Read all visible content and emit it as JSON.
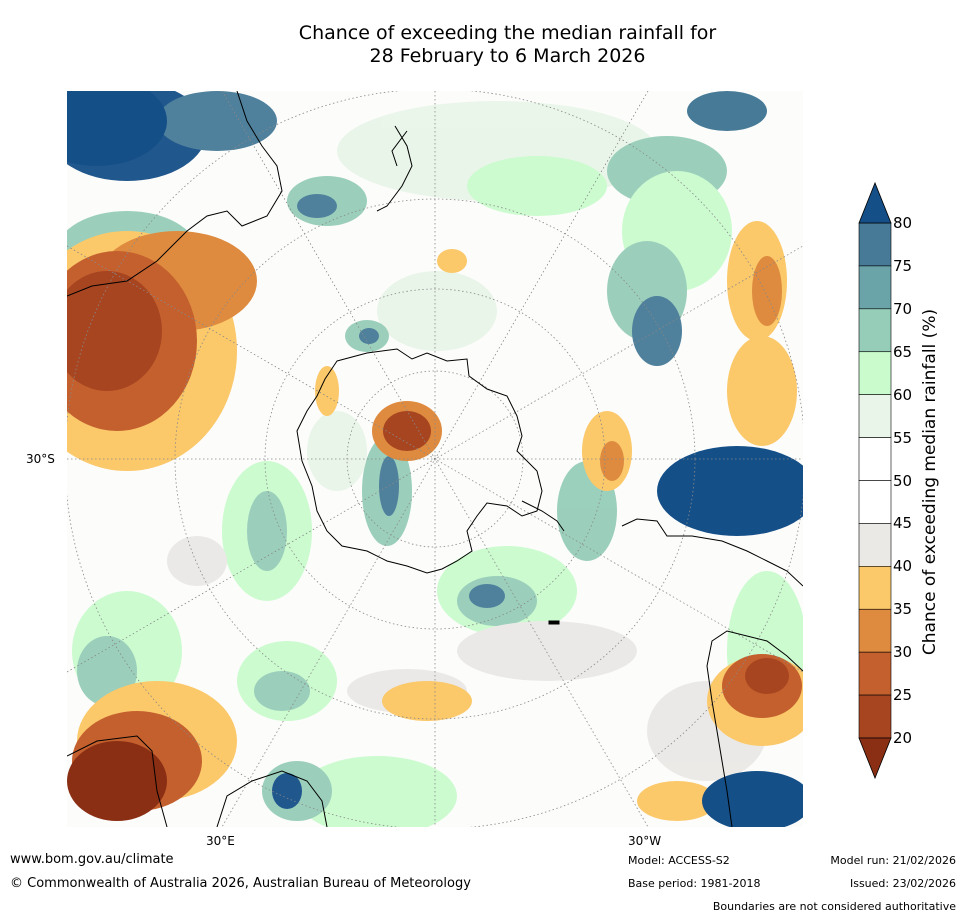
{
  "title": {
    "line1": "Chance of exceeding the median rainfall for",
    "line2": "28 February to 6 March 2026"
  },
  "map": {
    "projection": "south-polar",
    "lat_labels": [
      "30°S"
    ],
    "lon_labels": [
      "30°E",
      "30°W"
    ]
  },
  "colorbar": {
    "label": "Chance of exceeding median rainfall (%)",
    "ticks": [
      "20",
      "25",
      "30",
      "35",
      "40",
      "45",
      "50",
      "55",
      "60",
      "65",
      "70",
      "75",
      "80"
    ],
    "bands": [
      {
        "range": "<20",
        "color": "#8a2f14"
      },
      {
        "range": "20-25",
        "color": "#a84521"
      },
      {
        "range": "25-30",
        "color": "#c4602e"
      },
      {
        "range": "30-35",
        "color": "#de8b3f"
      },
      {
        "range": "35-40",
        "color": "#fbc86a"
      },
      {
        "range": "40-45",
        "color": "#ebe9e6"
      },
      {
        "range": "45-50",
        "color": "#ffffff"
      },
      {
        "range": "50-55",
        "color": "#ffffff"
      },
      {
        "range": "55-60",
        "color": "#e9f5e9"
      },
      {
        "range": "60-65",
        "color": "#c9fbcc"
      },
      {
        "range": "65-70",
        "color": "#96cdb9"
      },
      {
        "range": "70-75",
        "color": "#6aa3a8"
      },
      {
        "range": "75-80",
        "color": "#467a97"
      },
      {
        "range": ">80",
        "color": "#154f88"
      }
    ]
  },
  "footer": {
    "website": "www.bom.gov.au/climate",
    "copyright": "© Commonwealth of Australia 2026, Australian Bureau of Meteorology",
    "model": "Model: ACCESS-S2",
    "base_period": "Base period: 1981-2018",
    "model_run": "Model run: 21/02/2026",
    "issued": "Issued: 23/02/2026",
    "disclaimer": "Boundaries are not considered authoritative"
  }
}
